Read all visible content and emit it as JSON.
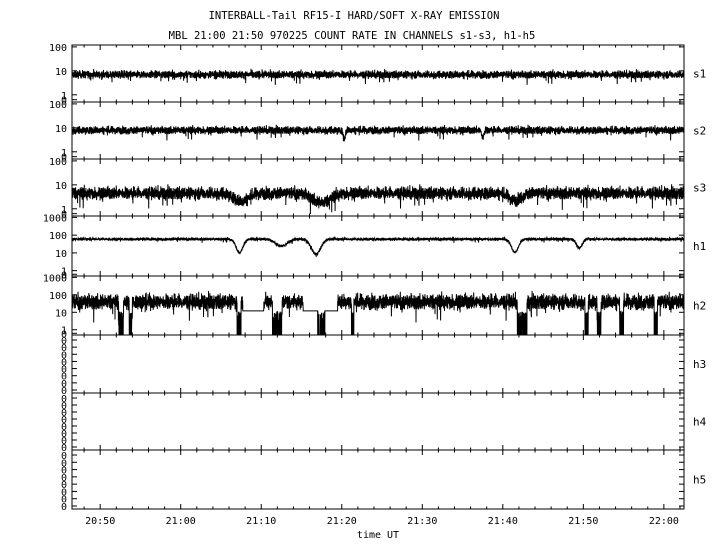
{
  "chart_data": {
    "type": "line",
    "title": "INTERBALL-Tail RF15-I HARD/SOFT X-RAY EMISSION",
    "subtitle": "MBL 21:00 21:50 970225  COUNT RATE IN CHANNELS s1-s3, h1-h5",
    "xlabel": "time UT",
    "x_ticks": [
      "20:50",
      "21:00",
      "21:10",
      "21:20",
      "21:30",
      "21:40",
      "21:50",
      "22:00"
    ],
    "x_tick_minutes": [
      1250,
      1260,
      1270,
      1280,
      1290,
      1300,
      1310,
      1320
    ],
    "xlim_minutes": [
      1246.5,
      1322.5
    ],
    "log_y": true,
    "grid": false,
    "panels": [
      {
        "name": "s1",
        "y_ticks": [
          "100",
          "10",
          "1",
          "0"
        ],
        "ylim": [
          0.5,
          120
        ],
        "base": 7,
        "noise": 0.08,
        "dips": [],
        "dropouts": []
      },
      {
        "name": "s2",
        "y_ticks": [
          "100",
          "10",
          "1",
          "0"
        ],
        "ylim": [
          0.5,
          120
        ],
        "base": 8,
        "noise": 0.08,
        "dips": [
          [
            1280.3,
            0.2,
            0.35
          ],
          [
            1297.5,
            0.2,
            0.3
          ]
        ],
        "dropouts": []
      },
      {
        "name": "s3",
        "y_ticks": [
          "100",
          "10",
          "1",
          "0"
        ],
        "ylim": [
          0.5,
          120
        ],
        "base": 4.5,
        "noise": 0.13,
        "dips": [
          [
            1267.5,
            1.2,
            0.35
          ],
          [
            1277.5,
            1.5,
            0.4
          ],
          [
            1301.5,
            1.0,
            0.3
          ]
        ],
        "dropouts": []
      },
      {
        "name": "h1",
        "y_ticks": [
          "1000",
          "100",
          "10",
          "1",
          "0"
        ],
        "ylim": [
          0.5,
          1200
        ],
        "base": 60,
        "noise": 0.04,
        "dips": [
          [
            1267.3,
            0.6,
            0.75
          ],
          [
            1272.5,
            1.0,
            0.4
          ],
          [
            1276.8,
            0.8,
            0.85
          ],
          [
            1301.5,
            0.6,
            0.75
          ],
          [
            1309.5,
            0.5,
            0.5
          ]
        ],
        "dropouts": []
      },
      {
        "name": "h2",
        "y_ticks": [
          "1000",
          "100",
          "10",
          "1",
          "0"
        ],
        "ylim": [
          0.5,
          1200
        ],
        "base": 40,
        "noise": 0.22,
        "dips": [],
        "dropouts": [
          [
            1252.3,
            1252.9
          ],
          [
            1253.6,
            1254.0
          ],
          [
            1267.0,
            1267.5
          ],
          [
            1271.4,
            1272.6
          ],
          [
            1277.0,
            1277.9
          ],
          [
            1281.2,
            1281.5
          ],
          [
            1301.8,
            1303.0
          ],
          [
            1310.2,
            1310.6
          ],
          [
            1311.7,
            1312.2
          ],
          [
            1314.5,
            1315.0
          ],
          [
            1318.8,
            1319.2
          ]
        ],
        "gaps": [
          [
            1267.7,
            1268.8
          ],
          [
            1268.8,
            1270.3
          ],
          [
            1275.2,
            1277.0
          ],
          [
            1277.9,
            1279.5
          ]
        ]
      },
      {
        "name": "h3",
        "y_ticks": [
          "0",
          "0",
          "0",
          "0",
          "0",
          "0",
          "0",
          "0"
        ],
        "ylim": null,
        "empty": true
      },
      {
        "name": "h4",
        "y_ticks": [
          "0",
          "0",
          "0",
          "0",
          "0",
          "0",
          "0",
          "0"
        ],
        "ylim": null,
        "empty": true
      },
      {
        "name": "h5",
        "y_ticks": [
          "0",
          "0",
          "0",
          "0",
          "0",
          "0",
          "0",
          "0"
        ],
        "ylim": null,
        "empty": true
      }
    ]
  }
}
